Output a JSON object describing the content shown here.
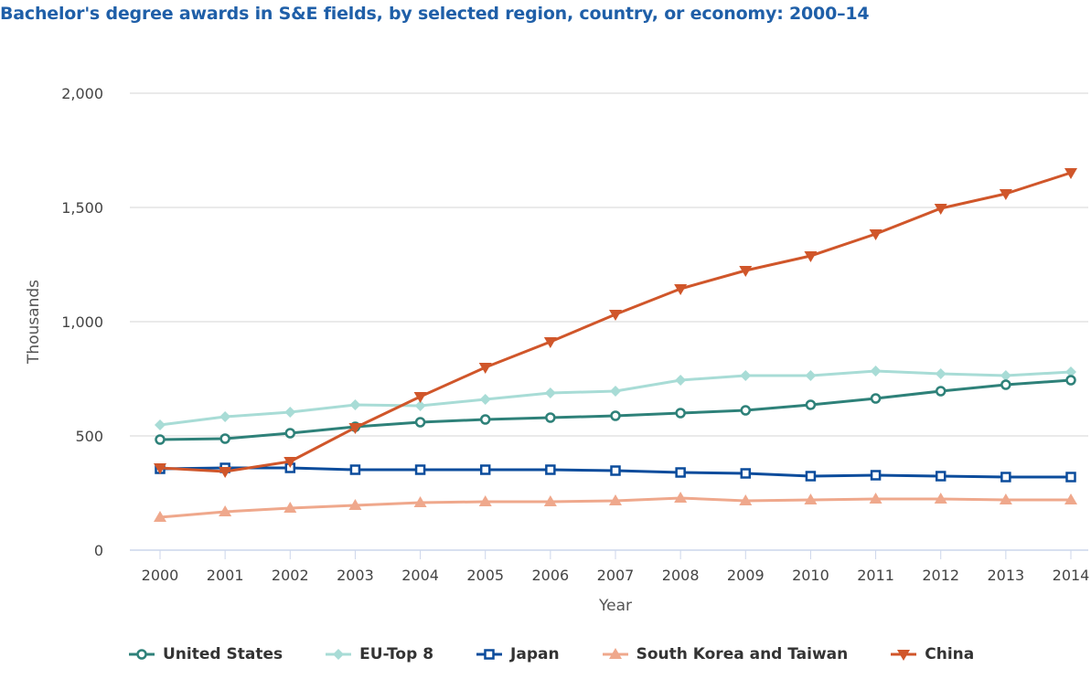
{
  "chart_data": {
    "type": "line",
    "title": "Bachelor's degree awards in S&E fields, by selected region, country, or economy: 2000–14",
    "xlabel": "Year",
    "ylabel": "Thousands",
    "ylim": [
      0,
      2000
    ],
    "yticks": [
      0,
      500,
      1000,
      1500,
      2000
    ],
    "ytick_labels": [
      "0",
      "500",
      "1,000",
      "1,500",
      "2,000"
    ],
    "grid": true,
    "legend_position": "bottom",
    "x": [
      "2000",
      "2001",
      "2002",
      "2003",
      "2004",
      "2005",
      "2006",
      "2007",
      "2008",
      "2009",
      "2010",
      "2011",
      "2012",
      "2013",
      "2014"
    ],
    "series": [
      {
        "name": "United States",
        "color": "#2e8179",
        "marker": "circle-open",
        "values": [
          484,
          488,
          512,
          540,
          560,
          572,
          580,
          588,
          600,
          612,
          636,
          664,
          696,
          724,
          744
        ]
      },
      {
        "name": "EU-Top 8",
        "color": "#a8dcd6",
        "marker": "diamond",
        "values": [
          548,
          584,
          604,
          636,
          632,
          660,
          688,
          696,
          744,
          764,
          764,
          784,
          772,
          764,
          780
        ]
      },
      {
        "name": "Japan",
        "color": "#0b4c9c",
        "marker": "square-open",
        "values": [
          356,
          360,
          360,
          352,
          352,
          352,
          352,
          348,
          340,
          336,
          324,
          328,
          324,
          320,
          320
        ]
      },
      {
        "name": "South Korea and Taiwan",
        "color": "#efa88c",
        "marker": "triangle-up",
        "values": [
          144,
          168,
          184,
          196,
          208,
          212,
          212,
          216,
          228,
          216,
          220,
          224,
          224,
          220,
          220
        ]
      },
      {
        "name": "China",
        "color": "#d0562a",
        "marker": "triangle-down",
        "values": [
          360,
          344,
          388,
          536,
          672,
          800,
          912,
          1032,
          1144,
          1224,
          1288,
          1384,
          1496,
          1560,
          1652
        ]
      }
    ]
  }
}
